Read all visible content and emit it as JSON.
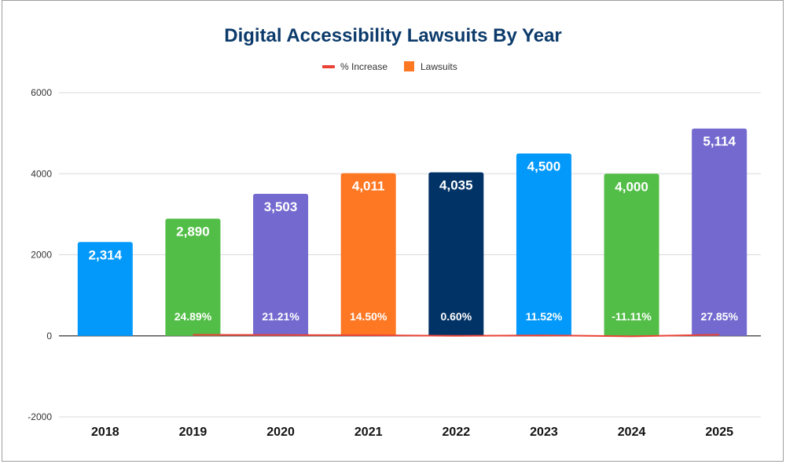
{
  "chart_data": {
    "type": "bar",
    "title": "Digital Accessibility Lawsuits By Year",
    "categories": [
      "2018",
      "2019",
      "2020",
      "2021",
      "2022",
      "2023",
      "2024",
      "2025"
    ],
    "series": [
      {
        "name": "Lawsuits",
        "type": "bar",
        "values": [
          2314,
          2890,
          3503,
          4011,
          4035,
          4500,
          4000,
          5114
        ],
        "labels": [
          "2,314",
          "2,890",
          "3,503",
          "4,011",
          "4,035",
          "4,500",
          "4,000",
          "5,114"
        ],
        "colors": [
          "#0399fb",
          "#53be47",
          "#7369cf",
          "#fe7722",
          "#023366",
          "#0399fb",
          "#53be47",
          "#7369cf"
        ]
      },
      {
        "name": "% Increase",
        "type": "line",
        "color": "#ea4335",
        "values": [
          null,
          24.89,
          21.21,
          14.5,
          0.6,
          11.52,
          -11.11,
          27.85
        ],
        "labels": [
          "",
          "24.89%",
          "21.21%",
          "14.50%",
          "0.60%",
          "11.52%",
          "-11.11%",
          "27.85%"
        ]
      }
    ],
    "legend": {
      "placement": "top",
      "items": [
        {
          "label": "% Increase",
          "color": "#ea4335",
          "shape": "line"
        },
        {
          "label": "Lawsuits",
          "color": "#fe7722",
          "shape": "square"
        }
      ]
    },
    "yticks": [
      "6000",
      "4000",
      "2000",
      "0",
      "-2000"
    ],
    "ylim": [
      -2000,
      6000
    ],
    "grid": true,
    "title_color": "#0b3a6b"
  }
}
